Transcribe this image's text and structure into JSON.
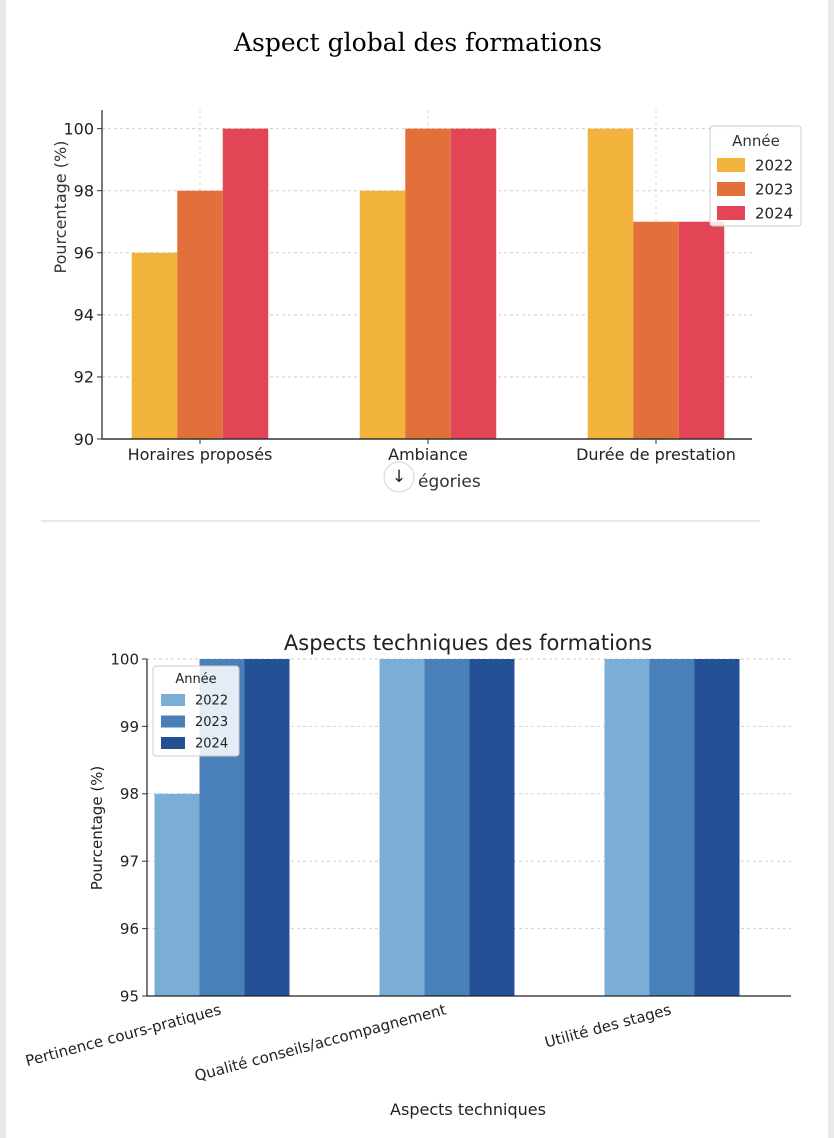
{
  "chart_data": [
    {
      "type": "bar",
      "title": "Aspect global des formations",
      "xlabel": "Catégories",
      "xlabel_visible_parts": [
        "égories"
      ],
      "ylabel": "Pourcentage (%)",
      "ylim": [
        90,
        100.6
      ],
      "yticks": [
        90,
        92,
        94,
        96,
        98,
        100
      ],
      "categories": [
        "Horaires proposés",
        "Ambiance",
        "Durée de prestation"
      ],
      "legend_title": "Année",
      "legend_position": "top-right",
      "grid": true,
      "series": [
        {
          "name": "2022",
          "color": "#f2b33d",
          "values": [
            96,
            98,
            100
          ]
        },
        {
          "name": "2023",
          "color": "#e3703a",
          "values": [
            98,
            100,
            97
          ]
        },
        {
          "name": "2024",
          "color": "#e14556",
          "values": [
            100,
            100,
            97
          ]
        }
      ]
    },
    {
      "type": "bar",
      "title": "Aspects techniques des formations",
      "xlabel": "Aspects techniques",
      "ylabel": "Pourcentage (%)",
      "ylim": [
        95,
        100
      ],
      "yticks": [
        95,
        96,
        97,
        98,
        99,
        100
      ],
      "categories": [
        "Pertinence cours-pratiques",
        "Qualité conseils/accompagnement",
        "Utilité des stages"
      ],
      "legend_title": "Année",
      "legend_position": "top-left",
      "grid": true,
      "series": [
        {
          "name": "2022",
          "color": "#7aaed5",
          "values": [
            98,
            100,
            100
          ]
        },
        {
          "name": "2023",
          "color": "#4a80b9",
          "values": [
            100,
            100,
            100
          ]
        },
        {
          "name": "2024",
          "color": "#245196",
          "values": [
            100,
            100,
            100
          ]
        }
      ]
    }
  ],
  "overlay": {
    "scroll_down_icon": "↓"
  }
}
